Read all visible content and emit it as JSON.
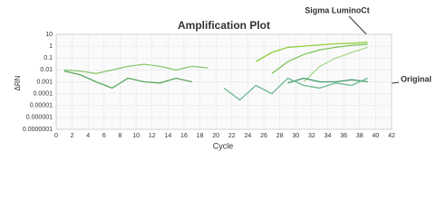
{
  "chart_data": {
    "type": "line",
    "title": "Amplification Plot",
    "x_label": "Cycle",
    "y_label": "ΔRN",
    "log_y": true,
    "grid": true,
    "annotations": [
      "Sigma LuminoCt",
      "Original"
    ],
    "x": [
      1,
      3,
      5,
      7,
      9,
      11,
      13,
      15,
      17,
      19,
      21,
      23,
      25,
      27,
      29,
      31,
      33,
      35,
      37,
      39
    ],
    "series": [
      {
        "color": "#8fd03c",
        "values": [
          null,
          null,
          null,
          null,
          null,
          null,
          null,
          null,
          null,
          null,
          null,
          null,
          0.05,
          0.3,
          0.8,
          1,
          1.3,
          1.6,
          1.8,
          2.2
        ]
      },
      {
        "color": "#7cc45a",
        "values": [
          null,
          null,
          null,
          null,
          null,
          null,
          null,
          null,
          null,
          null,
          null,
          null,
          null,
          0.005,
          0.05,
          0.2,
          0.5,
          0.8,
          1.2,
          1.5
        ]
      },
      {
        "color": "#a9d890",
        "values": [
          null,
          null,
          null,
          null,
          null,
          null,
          null,
          null,
          null,
          null,
          null,
          null,
          null,
          null,
          null,
          0.001,
          0.02,
          0.1,
          0.3,
          0.8
        ]
      },
      {
        "color": "#8cc870",
        "values": [
          0.01,
          0.008,
          0.005,
          0.01,
          0.02,
          0.03,
          0.02,
          0.01,
          0.02,
          0.015,
          null,
          null,
          null,
          null,
          null,
          null,
          null,
          null,
          null,
          null
        ]
      },
      {
        "color": "#5aa860",
        "values": [
          0.008,
          0.004,
          0.001,
          0.0003,
          0.002,
          0.001,
          0.0008,
          0.002,
          0.001,
          null,
          null,
          null,
          null,
          null,
          null,
          null,
          null,
          null,
          null,
          null
        ]
      },
      {
        "color": "#3f9a6a",
        "values": [
          null,
          null,
          null,
          null,
          null,
          null,
          null,
          null,
          null,
          null,
          null,
          null,
          null,
          null,
          0.0008,
          0.002,
          0.001,
          0.001,
          0.0015,
          0.001
        ]
      },
      {
        "color": "#6bb890",
        "values": [
          null,
          null,
          null,
          null,
          null,
          null,
          null,
          null,
          null,
          null,
          0.0003,
          3e-05,
          0.0005,
          0.0001,
          0.002,
          0.0005,
          0.0003,
          0.0008,
          0.0005,
          0.002
        ]
      }
    ],
    "xlim": [
      0,
      42
    ],
    "xticks": [
      0,
      2,
      4,
      6,
      8,
      10,
      12,
      14,
      16,
      18,
      20,
      22,
      24,
      26,
      28,
      30,
      32,
      34,
      36,
      38,
      40,
      42
    ],
    "ylim": [
      1e-07,
      10
    ],
    "yticks": [
      {
        "value": 1e-07,
        "label": "0.0000001"
      },
      1e-06,
      1e-05,
      0.0001,
      0.001,
      0.01,
      0.1,
      1,
      10
    ]
  }
}
